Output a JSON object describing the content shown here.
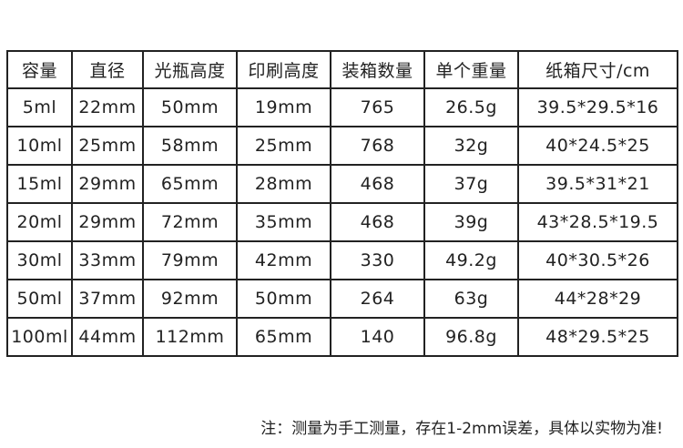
{
  "table": {
    "headers": [
      "容量",
      "直径",
      "光瓶高度",
      "印刷高度",
      "装箱数量",
      "单个重量",
      "纸箱尺寸/cm"
    ],
    "rows": [
      [
        "5ml",
        "22mm",
        "50mm",
        "19mm",
        "765",
        "26.5g",
        "39.5*29.5*16"
      ],
      [
        "10ml",
        "25mm",
        "58mm",
        "25mm",
        "768",
        "32g",
        "40*24.5*25"
      ],
      [
        "15ml",
        "29mm",
        "65mm",
        "28mm",
        "468",
        "37g",
        "39.5*31*21"
      ],
      [
        "20ml",
        "29mm",
        "72mm",
        "35mm",
        "468",
        "39g",
        "43*28.5*19.5"
      ],
      [
        "30ml",
        "33mm",
        "79mm",
        "42mm",
        "330",
        "49.2g",
        "40*30.5*26"
      ],
      [
        "50ml",
        "37mm",
        "92mm",
        "50mm",
        "264",
        "63g",
        "44*28*29"
      ],
      [
        "100ml",
        "44mm",
        "112mm",
        "65mm",
        "140",
        "96.8g",
        "48*29.5*25"
      ]
    ]
  },
  "note": "注：测量为手工测量，存在1-2mm误差，具体以实物为准!"
}
